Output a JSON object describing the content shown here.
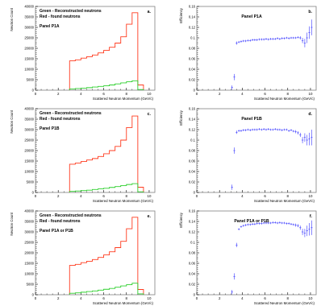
{
  "figure": {
    "colors": {
      "found": "#ff3b1f",
      "reconstructed": "#2ccf2c",
      "efficiency": "#3a3aff",
      "axis": "#000000",
      "frame": "#808080"
    }
  },
  "chart_data": [
    {
      "id": "a",
      "type": "histogram",
      "panel_letter": "a.",
      "legend": [
        "Green - Reconstructed neutrons",
        "Red - found neutrons"
      ],
      "label": "Panel P1A",
      "xlabel": "Scattered Neutron Momentum (GeV/c)",
      "ylabel": "Neutron Count",
      "xlim": [
        0,
        10.5
      ],
      "ylim": [
        0,
        40000
      ],
      "xticks": [
        0,
        2,
        4,
        6,
        8,
        10
      ],
      "yticks": [
        0,
        5000,
        10000,
        15000,
        20000,
        25000,
        30000,
        35000,
        40000
      ],
      "bin_edges": [
        3.0,
        3.5,
        4.0,
        4.5,
        5.0,
        5.5,
        6.0,
        6.5,
        7.0,
        7.5,
        8.0,
        8.5,
        9.0,
        9.5
      ],
      "series": [
        {
          "name": "found",
          "values": [
            14000,
            14500,
            15300,
            16000,
            16800,
            17800,
            19000,
            20500,
            22500,
            25500,
            31500,
            37000,
            2500
          ]
        },
        {
          "name": "reconstructed",
          "values": [
            600,
            800,
            1000,
            1200,
            1500,
            1800,
            2100,
            2500,
            3000,
            3500,
            4000,
            4500,
            300
          ]
        }
      ]
    },
    {
      "id": "b",
      "type": "scatter",
      "panel_letter": "b.",
      "label": "Panel P1A",
      "xlabel": "Scattered Neutron Momentum (GeV/c)",
      "ylabel": "Efficiency",
      "xlim": [
        0,
        10.5
      ],
      "ylim": [
        0,
        0.16
      ],
      "xticks": [
        0,
        2,
        4,
        6,
        8,
        10
      ],
      "yticks": [
        0,
        0.02,
        0.04,
        0.06,
        0.08,
        0.1,
        0.12,
        0.14,
        0.16
      ],
      "series": [
        {
          "x": [
            3.1,
            3.3,
            3.5,
            3.7,
            3.9,
            4.1,
            4.3,
            4.5,
            4.7,
            4.9,
            5.1,
            5.3,
            5.5,
            5.7,
            5.9,
            6.1,
            6.3,
            6.5,
            6.7,
            6.9,
            7.1,
            7.3,
            7.5,
            7.7,
            7.9,
            8.1,
            8.3,
            8.5,
            8.7,
            8.9,
            9.1,
            9.3,
            9.5,
            9.7,
            9.9,
            10.1
          ],
          "y": [
            0.005,
            0.025,
            0.09,
            0.092,
            0.093,
            0.094,
            0.094,
            0.095,
            0.095,
            0.096,
            0.096,
            0.096,
            0.097,
            0.097,
            0.097,
            0.098,
            0.097,
            0.098,
            0.098,
            0.098,
            0.099,
            0.098,
            0.099,
            0.099,
            0.1,
            0.099,
            0.1,
            0.1,
            0.1,
            0.101,
            0.1,
            0.095,
            0.09,
            0.1,
            0.11,
            0.12
          ],
          "err": [
            0.004,
            0.006,
            0.003,
            0.002,
            0.002,
            0.002,
            0.002,
            0.002,
            0.002,
            0.002,
            0.002,
            0.002,
            0.002,
            0.002,
            0.002,
            0.002,
            0.002,
            0.002,
            0.002,
            0.002,
            0.002,
            0.002,
            0.002,
            0.002,
            0.002,
            0.002,
            0.002,
            0.002,
            0.002,
            0.002,
            0.003,
            0.005,
            0.008,
            0.01,
            0.012,
            0.015
          ]
        }
      ]
    },
    {
      "id": "c",
      "type": "histogram",
      "panel_letter": "c.",
      "legend": [
        "Green - Reconstructed neutrons",
        "Red - found neutrons"
      ],
      "label": "Panel P1B",
      "xlabel": "Scattered Neutron Momentum (GeV/c)",
      "ylabel": "Neutron Count",
      "xlim": [
        0,
        10.5
      ],
      "ylim": [
        0,
        40000
      ],
      "xticks": [
        0,
        2,
        4,
        6,
        8,
        10
      ],
      "yticks": [
        0,
        5000,
        10000,
        15000,
        20000,
        25000,
        30000,
        35000,
        40000
      ],
      "bin_edges": [
        3.0,
        3.5,
        4.0,
        4.5,
        5.0,
        5.5,
        6.0,
        6.5,
        7.0,
        7.5,
        8.0,
        8.5,
        9.0,
        9.5
      ],
      "series": [
        {
          "name": "found",
          "values": [
            13500,
            14000,
            14800,
            15500,
            16200,
            17200,
            18500,
            20000,
            22000,
            25000,
            31000,
            36500,
            2500
          ]
        },
        {
          "name": "reconstructed",
          "values": [
            500,
            700,
            900,
            1100,
            1400,
            1700,
            2000,
            2400,
            2800,
            3300,
            3800,
            4200,
            300
          ]
        }
      ]
    },
    {
      "id": "d",
      "type": "scatter",
      "panel_letter": "d.",
      "label": "Panel P1B",
      "xlabel": "Scattered Neutron Momentum (GeV/c)",
      "ylabel": "Efficiency",
      "xlim": [
        0,
        10.5
      ],
      "ylim": [
        0,
        0.16
      ],
      "xticks": [
        0,
        2,
        4,
        6,
        8,
        10
      ],
      "yticks": [
        0,
        0.02,
        0.04,
        0.06,
        0.08,
        0.1,
        0.12,
        0.14,
        0.16
      ],
      "series": [
        {
          "x": [
            3.1,
            3.3,
            3.5,
            3.7,
            3.9,
            4.1,
            4.3,
            4.5,
            4.7,
            4.9,
            5.1,
            5.3,
            5.5,
            5.7,
            5.9,
            6.1,
            6.3,
            6.5,
            6.7,
            6.9,
            7.1,
            7.3,
            7.5,
            7.7,
            7.9,
            8.1,
            8.3,
            8.5,
            8.7,
            8.9,
            9.1,
            9.3,
            9.5,
            9.7,
            9.9,
            10.1
          ],
          "y": [
            0.01,
            0.08,
            0.115,
            0.118,
            0.118,
            0.119,
            0.119,
            0.12,
            0.119,
            0.12,
            0.12,
            0.12,
            0.121,
            0.12,
            0.121,
            0.12,
            0.121,
            0.12,
            0.12,
            0.121,
            0.12,
            0.12,
            0.119,
            0.12,
            0.12,
            0.118,
            0.119,
            0.117,
            0.116,
            0.114,
            0.11,
            0.1,
            0.105,
            0.1,
            0.102,
            0.105
          ],
          "err": [
            0.005,
            0.006,
            0.003,
            0.002,
            0.002,
            0.002,
            0.002,
            0.002,
            0.002,
            0.002,
            0.002,
            0.002,
            0.002,
            0.002,
            0.002,
            0.002,
            0.002,
            0.002,
            0.002,
            0.002,
            0.002,
            0.002,
            0.002,
            0.002,
            0.002,
            0.002,
            0.002,
            0.002,
            0.003,
            0.003,
            0.004,
            0.006,
            0.008,
            0.01,
            0.012,
            0.015
          ]
        }
      ]
    },
    {
      "id": "e",
      "type": "histogram",
      "panel_letter": "e.",
      "legend": [
        "Green - Reconstructed neutrons",
        "Red - found neutrons"
      ],
      "label": "Panel P1A or P1B",
      "xlabel": "Scattered Neutron Momentum (GeV/c)",
      "ylabel": "Neutron Count",
      "xlim": [
        0,
        10.5
      ],
      "ylim": [
        0,
        40000
      ],
      "xticks": [
        0,
        2,
        4,
        6,
        8,
        10
      ],
      "yticks": [
        0,
        5000,
        10000,
        15000,
        20000,
        25000,
        30000,
        35000,
        40000
      ],
      "bin_edges": [
        3.0,
        3.5,
        4.0,
        4.5,
        5.0,
        5.5,
        6.0,
        6.5,
        7.0,
        7.5,
        8.0,
        8.5,
        9.0,
        9.5
      ],
      "series": [
        {
          "name": "found",
          "values": [
            14000,
            14500,
            15300,
            16000,
            16800,
            17800,
            19000,
            20500,
            22500,
            25500,
            31500,
            37000,
            2500
          ]
        },
        {
          "name": "reconstructed",
          "values": [
            700,
            900,
            1200,
            1500,
            1800,
            2200,
            2600,
            3000,
            3600,
            4200,
            4800,
            5500,
            400
          ]
        }
      ]
    },
    {
      "id": "f",
      "type": "scatter",
      "panel_letter": "f.",
      "label": "Panel P1A or P1B",
      "xlabel": "Scattered Neutron Momentum (GeV/c)",
      "ylabel": "Efficiency",
      "xlim": [
        0,
        10.5
      ],
      "ylim": [
        0,
        0.16
      ],
      "xticks": [
        0,
        2,
        4,
        6,
        8,
        10
      ],
      "yticks": [
        0,
        0.02,
        0.04,
        0.06,
        0.08,
        0.1,
        0.12,
        0.14,
        0.16
      ],
      "series": [
        {
          "x": [
            3.1,
            3.3,
            3.5,
            3.7,
            3.9,
            4.1,
            4.3,
            4.5,
            4.7,
            4.9,
            5.1,
            5.3,
            5.5,
            5.7,
            5.9,
            6.1,
            6.3,
            6.5,
            6.7,
            6.9,
            7.1,
            7.3,
            7.5,
            7.7,
            7.9,
            8.1,
            8.3,
            8.5,
            8.7,
            8.9,
            9.1,
            9.3,
            9.5,
            9.7,
            9.9,
            10.1
          ],
          "y": [
            0.005,
            0.035,
            0.095,
            0.125,
            0.13,
            0.132,
            0.133,
            0.134,
            0.134,
            0.135,
            0.135,
            0.136,
            0.136,
            0.136,
            0.137,
            0.137,
            0.137,
            0.137,
            0.138,
            0.138,
            0.137,
            0.138,
            0.137,
            0.137,
            0.136,
            0.136,
            0.135,
            0.134,
            0.133,
            0.132,
            0.128,
            0.12,
            0.118,
            0.122,
            0.125,
            0.128
          ],
          "err": [
            0.004,
            0.006,
            0.004,
            0.002,
            0.002,
            0.002,
            0.002,
            0.002,
            0.002,
            0.002,
            0.002,
            0.002,
            0.002,
            0.002,
            0.002,
            0.002,
            0.002,
            0.002,
            0.002,
            0.002,
            0.002,
            0.002,
            0.002,
            0.002,
            0.002,
            0.002,
            0.002,
            0.002,
            0.003,
            0.003,
            0.004,
            0.006,
            0.008,
            0.01,
            0.012,
            0.014
          ]
        }
      ]
    }
  ]
}
